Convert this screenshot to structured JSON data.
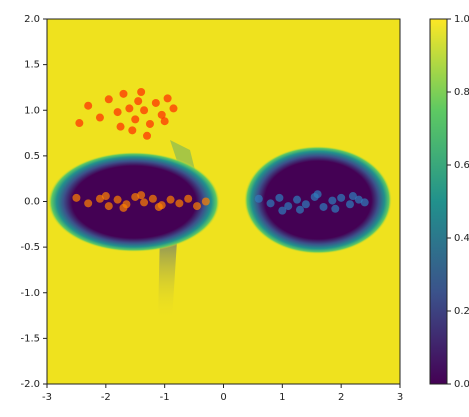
{
  "chart_data": {
    "type": "scatter",
    "xlim": [
      -3,
      3
    ],
    "xticks": [
      -3,
      -2,
      -1,
      0,
      1,
      2,
      3
    ],
    "ylim": [
      -2,
      2
    ],
    "yticks": [
      {
        "value": -2,
        "label": "-2.0"
      },
      {
        "value": -1.5,
        "label": "-1.5"
      },
      {
        "value": -1,
        "label": "-1.0"
      },
      {
        "value": -0.5,
        "label": "-0.5"
      },
      {
        "value": 0,
        "label": "0.0"
      },
      {
        "value": 0.5,
        "label": "0.5"
      },
      {
        "value": 1,
        "label": "1.0"
      },
      {
        "value": 1.5,
        "label": "1.5"
      },
      {
        "value": 2,
        "label": "2.0"
      }
    ],
    "colorbar_lim": [
      0,
      1
    ],
    "colorbar_ticks": [
      {
        "value": 0,
        "label": "0.0"
      },
      {
        "value": 0.2,
        "label": "0.2"
      },
      {
        "value": 0.4,
        "label": "0.4"
      },
      {
        "value": 0.6,
        "label": "0.6"
      },
      {
        "value": 0.8,
        "label": "0.8"
      },
      {
        "value": 1,
        "label": "1.0"
      }
    ],
    "series": [
      {
        "color": "#ff2a00",
        "x": [
          -2.3,
          -2.1,
          -1.95,
          -1.8,
          -1.7,
          -1.6,
          -1.5,
          -1.45,
          -1.35,
          -1.25,
          -1.15,
          -1.05,
          -0.95,
          -0.85,
          -1.55,
          -1.75,
          -1.4,
          -2.45,
          -1.3,
          -1.0
        ],
        "y": [
          1.05,
          0.92,
          1.12,
          0.98,
          1.18,
          1.02,
          0.9,
          1.1,
          1.0,
          0.85,
          1.08,
          0.95,
          1.13,
          1.02,
          0.78,
          0.82,
          1.2,
          0.86,
          0.72,
          0.88
        ]
      },
      {
        "color": "#ff8000",
        "x": [
          -2.5,
          -2.3,
          -2.1,
          -1.95,
          -1.8,
          -1.65,
          -1.5,
          -1.35,
          -1.2,
          -1.05,
          -0.9,
          -0.75,
          -0.6,
          -0.45,
          -0.3,
          -1.7,
          -1.4,
          -2.0,
          -1.1
        ],
        "y": [
          0.04,
          -0.02,
          0.03,
          -0.05,
          0.02,
          -0.03,
          0.05,
          -0.01,
          0.03,
          -0.04,
          0.02,
          -0.02,
          0.03,
          -0.05,
          0.0,
          -0.07,
          0.07,
          0.06,
          -0.06
        ]
      },
      {
        "color": "#2f7ebc",
        "x": [
          0.6,
          0.8,
          0.95,
          1.1,
          1.25,
          1.4,
          1.55,
          1.7,
          1.85,
          2.0,
          2.15,
          2.3,
          2.4,
          1.3,
          1.6,
          1.9,
          1.0,
          2.2
        ],
        "y": [
          0.03,
          -0.02,
          0.04,
          -0.05,
          0.02,
          -0.03,
          0.05,
          -0.06,
          0.01,
          0.04,
          -0.03,
          0.02,
          -0.01,
          -0.09,
          0.08,
          -0.08,
          -0.1,
          0.06
        ]
      }
    ]
  }
}
